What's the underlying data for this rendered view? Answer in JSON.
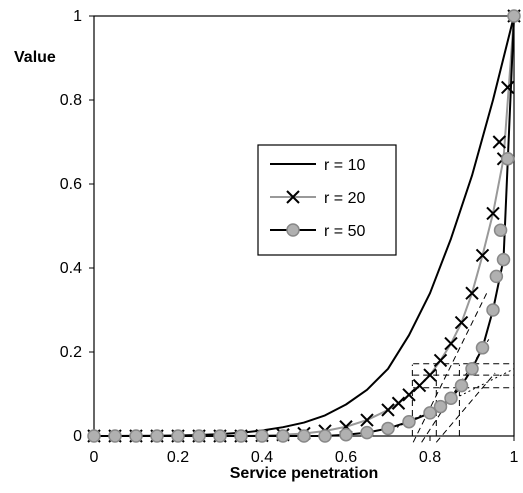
{
  "chart_data": {
    "type": "line",
    "title": "",
    "xlabel": "Service penetration",
    "ylabel": "Value",
    "xlim": [
      0,
      1
    ],
    "ylim": [
      0,
      1
    ],
    "x_ticks": [
      "0",
      "0.2",
      "0.4",
      "0.6",
      "0.8",
      "1"
    ],
    "y_ticks": [
      "0",
      "0.2",
      "0.4",
      "0.6",
      "0.8",
      "1"
    ],
    "grid": false,
    "legend_position": "center-right",
    "series": [
      {
        "name": "r = 10",
        "marker": "none",
        "color": "#000000",
        "x": [
          0,
          0.05,
          0.1,
          0.15,
          0.2,
          0.25,
          0.3,
          0.35,
          0.4,
          0.45,
          0.5,
          0.55,
          0.6,
          0.65,
          0.7,
          0.75,
          0.8,
          0.85,
          0.9,
          0.95,
          1
        ],
        "y": [
          0,
          0.0001,
          0.0003,
          0.0007,
          0.0013,
          0.0025,
          0.0045,
          0.0076,
          0.013,
          0.021,
          0.032,
          0.049,
          0.075,
          0.11,
          0.16,
          0.24,
          0.34,
          0.47,
          0.62,
          0.8,
          1
        ]
      },
      {
        "name": "r = 20",
        "marker": "x",
        "color": "#999999",
        "x": [
          0,
          0.05,
          0.1,
          0.15,
          0.2,
          0.25,
          0.3,
          0.35,
          0.4,
          0.45,
          0.5,
          0.55,
          0.6,
          0.65,
          0.7,
          0.725,
          0.75,
          0.775,
          0.8,
          0.825,
          0.85,
          0.875,
          0.9,
          0.925,
          0.95,
          0.975,
          1
        ],
        "y": [
          0,
          0,
          0,
          0,
          0,
          0,
          0,
          0,
          0.001,
          0.003,
          0.006,
          0.012,
          0.022,
          0.038,
          0.062,
          0.078,
          0.098,
          0.12,
          0.145,
          0.18,
          0.22,
          0.27,
          0.34,
          0.43,
          0.53,
          0.66,
          1
        ]
      },
      {
        "name": "r = 50",
        "marker": "circle",
        "color": "#999999",
        "x": [
          0,
          0.05,
          0.1,
          0.15,
          0.2,
          0.25,
          0.3,
          0.35,
          0.4,
          0.45,
          0.5,
          0.55,
          0.6,
          0.65,
          0.7,
          0.75,
          0.8,
          0.825,
          0.85,
          0.875,
          0.9,
          0.925,
          0.95,
          0.975,
          1
        ],
        "y": [
          0,
          0,
          0,
          0,
          0,
          0,
          0,
          0,
          0,
          0,
          0,
          0,
          0.003,
          0.008,
          0.018,
          0.034,
          0.055,
          0.07,
          0.09,
          0.12,
          0.16,
          0.21,
          0.3,
          0.42,
          1
        ]
      }
    ],
    "extra_markers": [
      {
        "series": "r = 20",
        "x": 0.965,
        "y": 0.7
      },
      {
        "series": "r = 20",
        "x": 0.985,
        "y": 0.83
      },
      {
        "series": "r = 50",
        "x": 0.985,
        "y": 0.66
      },
      {
        "series": "r = 50",
        "x": 0.968,
        "y": 0.49
      },
      {
        "series": "r = 50",
        "x": 0.958,
        "y": 0.38
      }
    ],
    "reference_lines": [
      {
        "style": "dashed",
        "type": "vertical",
        "x": 0.758,
        "y0": 0,
        "y1": 0.17
      },
      {
        "style": "dashed",
        "type": "vertical",
        "x": 0.815,
        "y0": 0,
        "y1": 0.17
      },
      {
        "style": "dashed",
        "type": "vertical",
        "x": 0.87,
        "y0": 0,
        "y1": 0.17
      },
      {
        "style": "dashed",
        "type": "horizontal",
        "y": 0.172,
        "x0": 0.76,
        "x1": 1
      },
      {
        "style": "dashed",
        "type": "horizontal",
        "y": 0.145,
        "x0": 0.76,
        "x1": 1
      },
      {
        "style": "dashed",
        "type": "horizontal",
        "y": 0.115,
        "x0": 0.76,
        "x1": 1
      },
      {
        "style": "dashed",
        "type": "tangent",
        "x0": 0.76,
        "y0": -0.015,
        "x1": 0.935,
        "y1": 0.34
      },
      {
        "style": "dashed",
        "type": "tangent",
        "x0": 0.78,
        "y0": -0.015,
        "x1": 0.94,
        "y1": 0.23
      },
      {
        "style": "dashed",
        "type": "tangent",
        "x0": 0.815,
        "y0": -0.015,
        "x1": 0.955,
        "y1": 0.15
      },
      {
        "style": "dotted",
        "type": "tangent",
        "x0": 0.7,
        "y0": 0.01,
        "x1": 1,
        "y1": 0.16
      }
    ]
  }
}
